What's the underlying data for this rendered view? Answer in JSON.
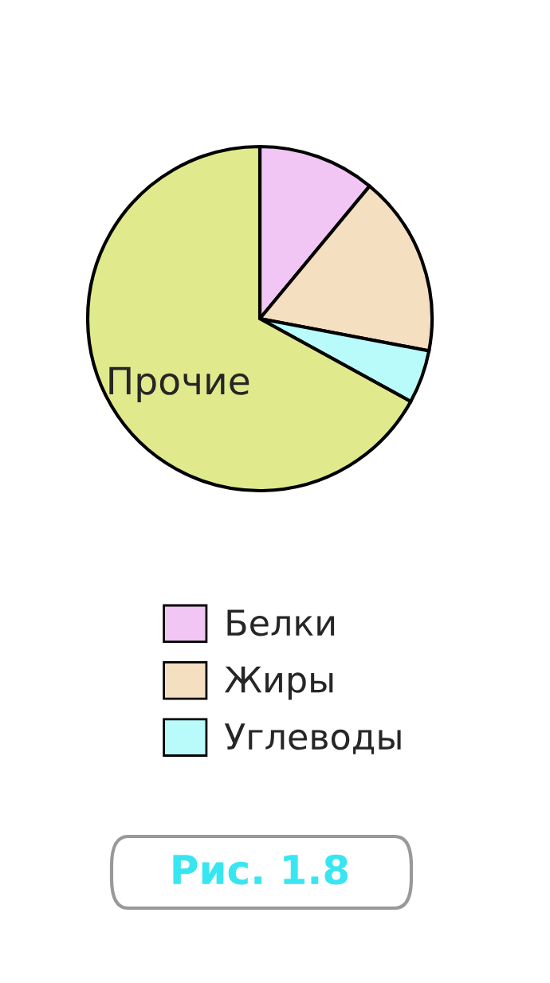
{
  "chart_data": {
    "type": "pie",
    "categories": [
      "Белки",
      "Жиры",
      "Углеводы",
      "Прочие"
    ],
    "values": [
      11,
      17,
      5,
      67
    ],
    "colors": [
      "#f2c6f4",
      "#f4dfc0",
      "#b9fbfb",
      "#e0ea8c"
    ],
    "legend": "bottom",
    "annotations": [
      "Рис. 1.8"
    ]
  }
}
